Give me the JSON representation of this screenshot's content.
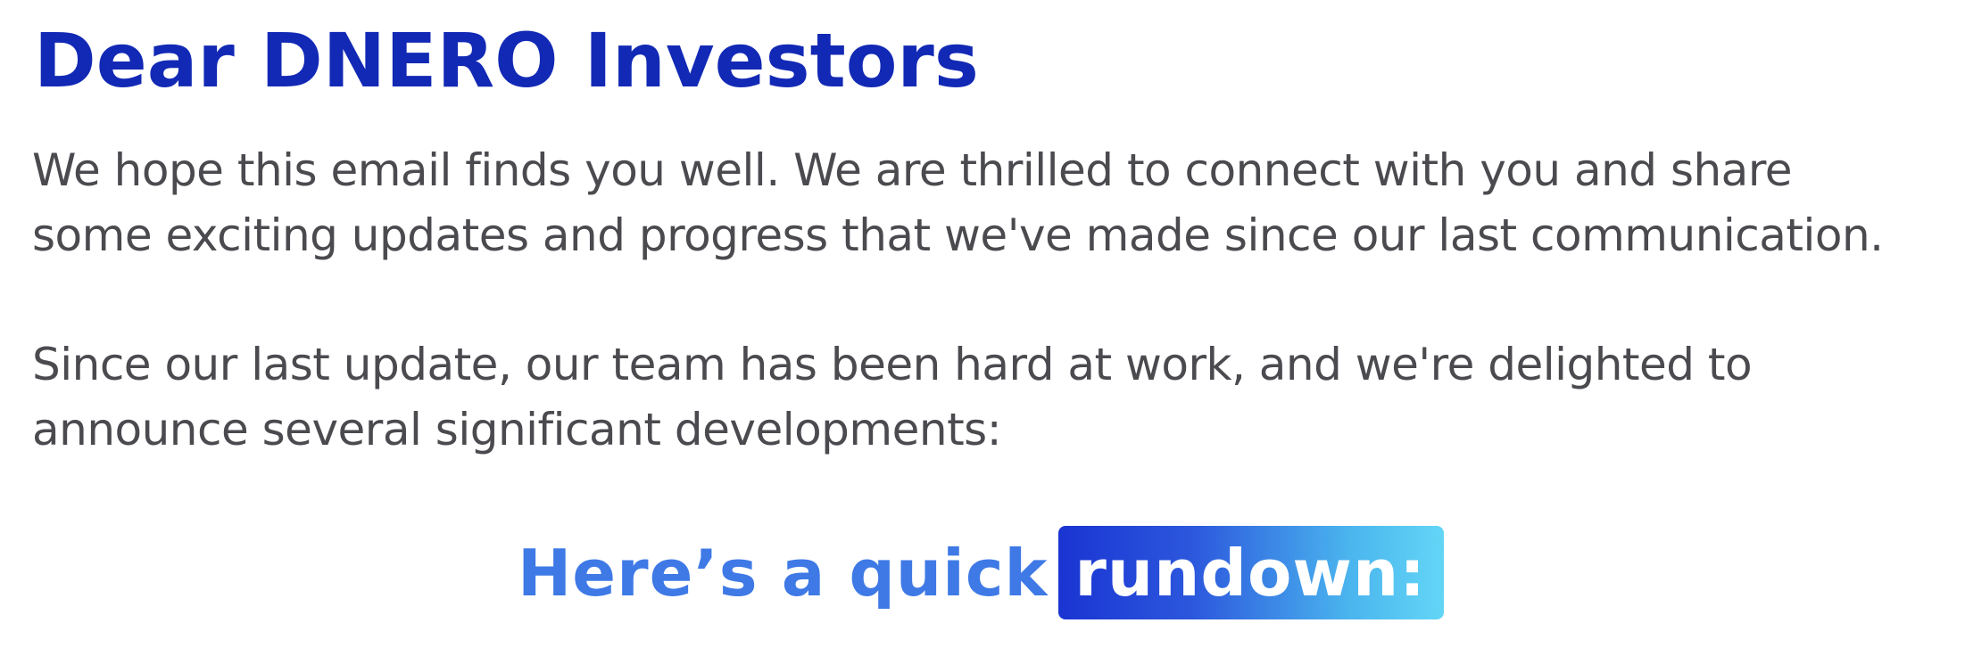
{
  "heading": "Dear DNERO Investors",
  "paragraphs": [
    {
      "lines": [
        "We hope this email finds you well. We are thrilled to connect with you and share",
        "some exciting updates and progress that we've made since our last communication."
      ]
    },
    {
      "lines": [
        "Since our last update, our team has been hard at work, and we're delighted to",
        "announce several significant developments:"
      ]
    }
  ],
  "rundown": {
    "lead": "Here’s a quick",
    "highlight": "rundown:"
  },
  "colors": {
    "heading": "#1229b5",
    "body_text": "#4a4a4f",
    "rundown_lead": "#3e79e6",
    "highlight_gradient_start": "#1a34d2",
    "highlight_gradient_end": "#63d6f6"
  }
}
